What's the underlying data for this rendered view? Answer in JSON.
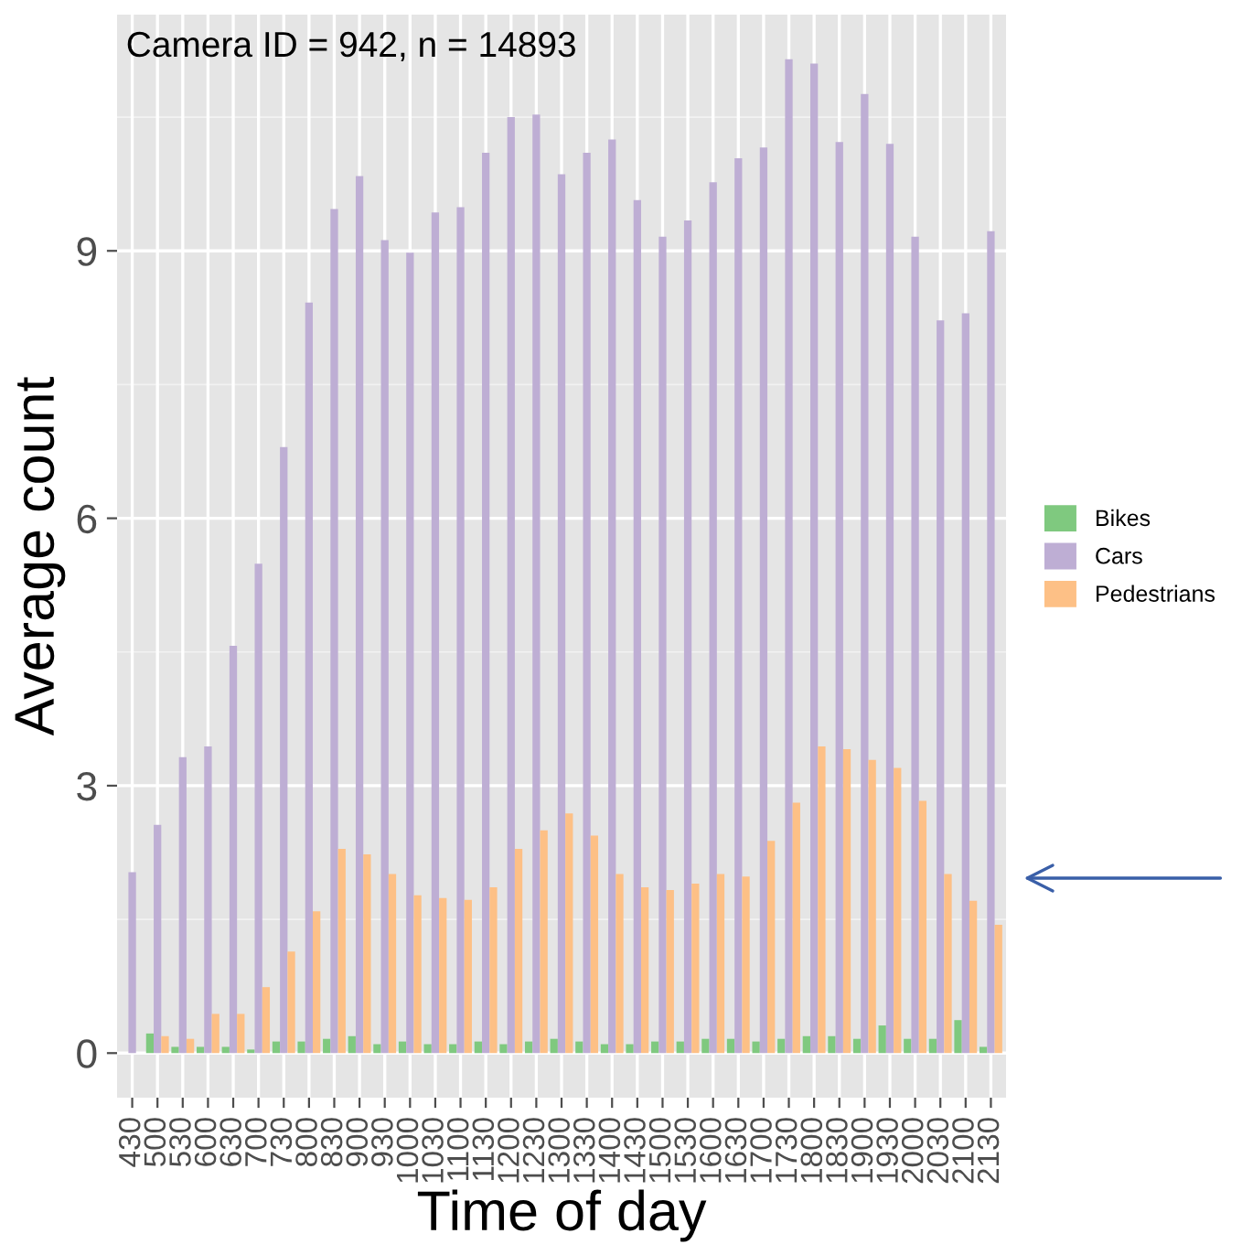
{
  "chart_data": {
    "type": "bar",
    "title": "Camera ID = 942, n = 14893",
    "xlabel": "Time of day",
    "ylabel": "Average count",
    "categories": [
      "430",
      "500",
      "530",
      "600",
      "630",
      "700",
      "730",
      "800",
      "830",
      "900",
      "930",
      "1000",
      "1030",
      "1100",
      "1130",
      "1200",
      "1230",
      "1300",
      "1330",
      "1400",
      "1430",
      "1500",
      "1530",
      "1600",
      "1630",
      "1700",
      "1730",
      "1800",
      "1830",
      "1900",
      "1930",
      "2000",
      "2030",
      "2100",
      "2130"
    ],
    "series": [
      {
        "name": "Bikes",
        "color": "#7fc97f",
        "values": [
          0,
          0.22,
          0.07,
          0.07,
          0.07,
          0.04,
          0.13,
          0.13,
          0.16,
          0.19,
          0.1,
          0.13,
          0.1,
          0.1,
          0.13,
          0.1,
          0.13,
          0.16,
          0.13,
          0.1,
          0.1,
          0.13,
          0.13,
          0.16,
          0.16,
          0.13,
          0.16,
          0.19,
          0.19,
          0.16,
          0.31,
          0.16,
          0.16,
          0.37,
          0.07
        ]
      },
      {
        "name": "Cars",
        "color": "#beaed4",
        "values": [
          2.03,
          2.56,
          3.32,
          3.44,
          4.57,
          5.49,
          6.8,
          8.42,
          9.47,
          9.84,
          9.12,
          8.98,
          9.43,
          9.49,
          10.1,
          10.5,
          10.53,
          9.86,
          10.1,
          10.25,
          9.57,
          9.16,
          9.34,
          9.77,
          10.04,
          10.16,
          11.15,
          11.1,
          10.22,
          10.76,
          10.2,
          9.16,
          8.22,
          8.3,
          9.22
        ]
      },
      {
        "name": "Pedestrians",
        "color": "#fdc086",
        "values": [
          0,
          0.19,
          0.16,
          0.44,
          0.44,
          0.74,
          1.14,
          1.59,
          2.29,
          2.23,
          2.01,
          1.77,
          1.74,
          1.72,
          1.86,
          2.29,
          2.5,
          2.69,
          2.44,
          2.01,
          1.86,
          1.83,
          1.9,
          2.01,
          1.98,
          2.38,
          2.81,
          3.44,
          3.41,
          3.29,
          3.2,
          2.83,
          2.01,
          1.71,
          1.44
        ]
      }
    ],
    "ylim": [
      -0.5,
      11.65
    ],
    "yticks": [
      0,
      3,
      6,
      9
    ],
    "grid": true,
    "legend": "right"
  }
}
